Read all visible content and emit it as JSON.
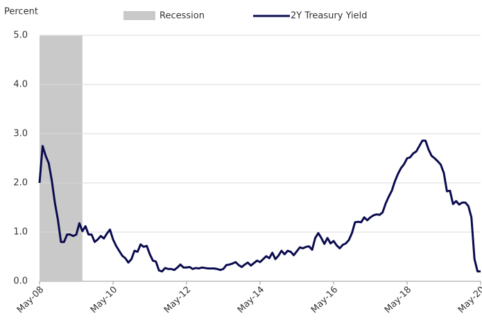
{
  "chart_data": {
    "type": "line",
    "y_axis_label": "Percent",
    "categories": [
      "May-08",
      null,
      null,
      null,
      null,
      null,
      null,
      null,
      null,
      null,
      null,
      null,
      null,
      null,
      null,
      null,
      null,
      null,
      null,
      null,
      null,
      null,
      null,
      null,
      "May-10",
      null,
      null,
      null,
      null,
      null,
      null,
      null,
      null,
      null,
      null,
      null,
      null,
      null,
      null,
      null,
      null,
      null,
      null,
      null,
      null,
      null,
      null,
      null,
      "May-12",
      null,
      null,
      null,
      null,
      null,
      null,
      null,
      null,
      null,
      null,
      null,
      null,
      null,
      null,
      null,
      null,
      null,
      null,
      null,
      null,
      null,
      null,
      null,
      "May-14",
      null,
      null,
      null,
      null,
      null,
      null,
      null,
      null,
      null,
      null,
      null,
      null,
      null,
      null,
      null,
      null,
      null,
      null,
      null,
      null,
      null,
      null,
      null,
      "May-16",
      null,
      null,
      null,
      null,
      null,
      null,
      null,
      null,
      null,
      null,
      null,
      null,
      null,
      null,
      null,
      null,
      null,
      null,
      null,
      null,
      null,
      null,
      null,
      "May-18",
      null,
      null,
      null,
      null,
      null,
      null,
      null,
      null,
      null,
      null,
      null,
      null,
      null,
      null,
      null,
      null,
      null,
      null,
      null,
      null,
      null,
      null,
      null,
      "May-20"
    ],
    "series": [
      {
        "name": "2Y Treasury Yield",
        "color": "#0b0b4f",
        "values": [
          2.0,
          2.75,
          2.55,
          2.4,
          2.05,
          1.6,
          1.25,
          0.8,
          0.8,
          0.95,
          0.95,
          0.92,
          0.95,
          1.18,
          1.02,
          1.12,
          0.95,
          0.95,
          0.8,
          0.85,
          0.92,
          0.87,
          0.97,
          1.05,
          0.85,
          0.72,
          0.62,
          0.52,
          0.47,
          0.38,
          0.45,
          0.62,
          0.6,
          0.75,
          0.7,
          0.72,
          0.55,
          0.42,
          0.4,
          0.22,
          0.2,
          0.27,
          0.25,
          0.25,
          0.23,
          0.28,
          0.34,
          0.28,
          0.28,
          0.29,
          0.25,
          0.27,
          0.26,
          0.28,
          0.27,
          0.26,
          0.26,
          0.26,
          0.25,
          0.23,
          0.25,
          0.33,
          0.34,
          0.36,
          0.39,
          0.33,
          0.29,
          0.34,
          0.38,
          0.32,
          0.37,
          0.42,
          0.39,
          0.45,
          0.51,
          0.47,
          0.58,
          0.45,
          0.52,
          0.62,
          0.55,
          0.62,
          0.6,
          0.53,
          0.61,
          0.69,
          0.67,
          0.7,
          0.71,
          0.64,
          0.88,
          0.98,
          0.88,
          0.76,
          0.88,
          0.77,
          0.82,
          0.73,
          0.67,
          0.74,
          0.77,
          0.84,
          0.98,
          1.2,
          1.21,
          1.2,
          1.3,
          1.24,
          1.3,
          1.34,
          1.36,
          1.35,
          1.4,
          1.58,
          1.72,
          1.84,
          2.03,
          2.18,
          2.3,
          2.38,
          2.5,
          2.52,
          2.6,
          2.64,
          2.75,
          2.86,
          2.86,
          2.68,
          2.55,
          2.5,
          2.44,
          2.37,
          2.2,
          1.83,
          1.84,
          1.57,
          1.63,
          1.56,
          1.6,
          1.6,
          1.53,
          1.3,
          0.45,
          0.2,
          0.2
        ]
      }
    ],
    "shaded_regions": [
      {
        "name": "Recession",
        "start": 0,
        "end": 14,
        "color": "#c9c9c9"
      }
    ],
    "ylim": [
      0,
      5
    ],
    "yticks": [
      {
        "value": 0,
        "label": "0.0"
      },
      {
        "value": 1,
        "label": "1.0"
      },
      {
        "value": 2,
        "label": "2.0"
      },
      {
        "value": 3,
        "label": "3.0"
      },
      {
        "value": 4,
        "label": "4.0"
      },
      {
        "value": 5,
        "label": "5.0"
      }
    ],
    "grid": true
  }
}
